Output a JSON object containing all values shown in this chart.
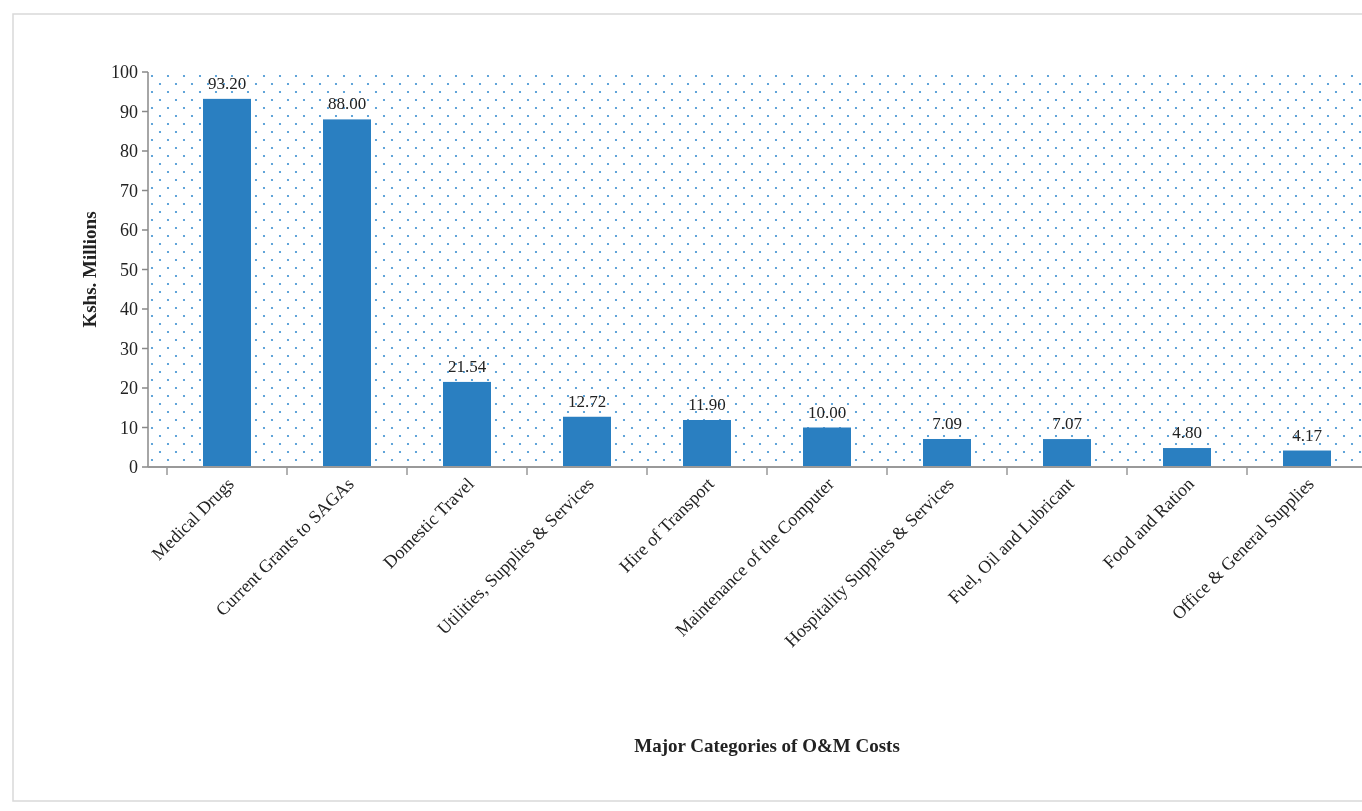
{
  "chart_data": {
    "type": "bar",
    "xlabel": "Major Categories of O&M Costs",
    "ylabel": "Kshs. Millions",
    "categories": [
      "Medical Drugs",
      "Current Grants to SAGAs",
      "Domestic Travel",
      "Utilities, Supplies & Services",
      "Hire of Transport",
      "Maintenance of the Computer",
      "Hospitality Supplies & Services",
      "Fuel, Oil and Lubricant",
      "Food and Ration",
      "Office & General Supplies"
    ],
    "values": [
      93.2,
      88.0,
      21.54,
      12.72,
      11.9,
      10.0,
      7.09,
      7.07,
      4.8,
      4.17
    ],
    "value_labels": [
      "93.20",
      "88.00",
      "21.54",
      "12.72",
      "11.90",
      "10.00",
      "7.09",
      "7.07",
      "4.80",
      "4.17"
    ],
    "color": "#2a7fc1",
    "ylim": [
      0,
      100
    ],
    "yticks": [
      0,
      10,
      20,
      30,
      40,
      50,
      60,
      70,
      80,
      90,
      100
    ],
    "grid": false
  }
}
